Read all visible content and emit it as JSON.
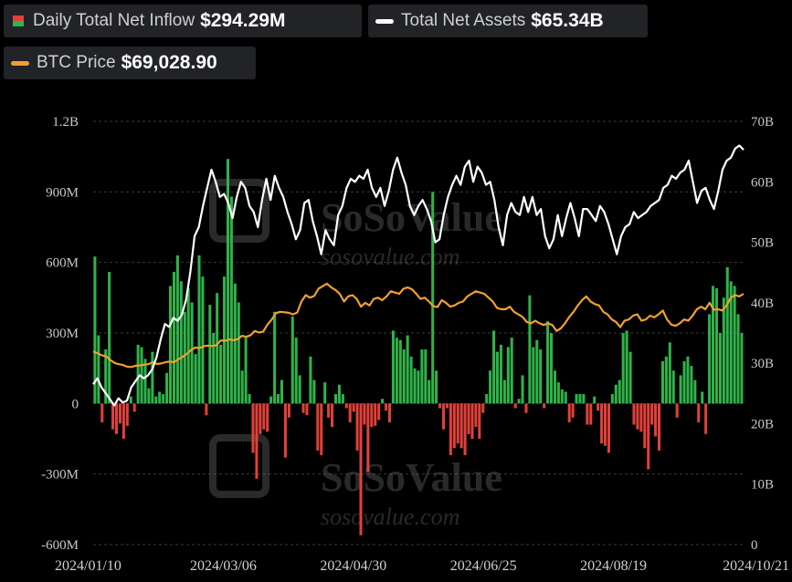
{
  "legend": {
    "inflow_label": "Daily Total Net Inflow",
    "inflow_value": "$294.29M",
    "assets_label": "Total Net Assets",
    "assets_value": "$65.34B",
    "btc_label": "BTC Price",
    "btc_value": "$69,028.90"
  },
  "watermark": {
    "brand": "SoSoValue",
    "url": "sosovalue.com"
  },
  "colors": {
    "positive_bar": "#2fb34a",
    "negative_bar": "#e0413a",
    "assets_line": "#ffffff",
    "btc_line": "#f0a030",
    "grid": "#3a3a3a",
    "background": "#000000"
  },
  "chart_data": {
    "type": "bar",
    "title": "",
    "x_ticks": [
      "2024/01/10",
      "2024/03/06",
      "2024/04/30",
      "2024/06/25",
      "2024/08/19",
      "2024/10/21"
    ],
    "y_left": {
      "ticks": [
        "-600M",
        "-300M",
        "0",
        "300M",
        "600M",
        "900M",
        "1.2B"
      ],
      "range": [
        -600,
        1200
      ],
      "unit": "M"
    },
    "y_right": {
      "ticks": [
        "0",
        "10B",
        "20B",
        "30B",
        "40B",
        "50B",
        "60B",
        "70B"
      ],
      "range": [
        0,
        70
      ],
      "unit": "B"
    },
    "grid": true,
    "series": [
      {
        "name": "Daily Total Net Inflow",
        "kind": "bar",
        "axis": "left",
        "values": [
          625,
          290,
          -80,
          230,
          560,
          -110,
          -130,
          -85,
          -150,
          -95,
          30,
          -35,
          250,
          240,
          190,
          65,
          220,
          30,
          50,
          40,
          130,
          500,
          560,
          630,
          520,
          390,
          490,
          430,
          210,
          630,
          540,
          -50,
          420,
          300,
          470,
          250,
          540,
          1040,
          880,
          510,
          430,
          140,
          280,
          40,
          -210,
          -320,
          -130,
          -110,
          -120,
          30,
          390,
          40,
          100,
          -230,
          -60,
          370,
          280,
          120,
          -40,
          -50,
          200,
          100,
          -200,
          -220,
          90,
          -60,
          -100,
          40,
          80,
          40,
          -20,
          -80,
          -35,
          -200,
          -560,
          -90,
          -290,
          -100,
          -95,
          -70,
          20,
          -30,
          -80,
          310,
          280,
          270,
          230,
          290,
          200,
          150,
          140,
          230,
          230,
          100,
          900,
          140,
          -20,
          -110,
          -20,
          -220,
          -190,
          -170,
          -190,
          -220,
          -130,
          -150,
          -100,
          -150,
          -40,
          40,
          140,
          310,
          220,
          250,
          100,
          240,
          280,
          -20,
          20,
          120,
          -40,
          460,
          240,
          270,
          230,
          -20,
          350,
          300,
          140,
          90,
          60,
          50,
          -80,
          -60,
          40,
          40,
          40,
          -90,
          -90,
          30,
          -30,
          -170,
          -180,
          -210,
          40,
          80,
          100,
          300,
          310,
          220,
          -90,
          -110,
          -120,
          -190,
          -280,
          -90,
          -140,
          -200,
          180,
          200,
          260,
          140,
          -60,
          120,
          180,
          200,
          160,
          100,
          -80,
          50,
          -130,
          380,
          500,
          490,
          300,
          450,
          580,
          520,
          500,
          380,
          300
        ]
      },
      {
        "name": "Total Net Assets",
        "kind": "line",
        "axis": "right",
        "values": [
          26.5,
          27.5,
          26.0,
          25.0,
          24.0,
          23.0,
          24.2,
          23.5,
          23.8,
          26.0,
          27.0,
          28.0,
          27.5,
          28.0,
          29.0,
          31.0,
          34.0,
          36.5,
          36.0,
          37.5,
          37.0,
          38.0,
          40.5,
          45.0,
          51.0,
          52.5,
          56.0,
          59.0,
          62.0,
          60.0,
          57.5,
          58.0,
          56.5,
          54.0,
          57.5,
          60.0,
          59.0,
          56.0,
          55.0,
          52.5,
          57.0,
          60.5,
          57.0,
          61.0,
          59.0,
          57.5,
          55.0,
          53.0,
          50.5,
          52.0,
          56.5,
          57.0,
          53.5,
          51.0,
          48.0,
          52.0,
          50.5,
          49.5,
          54.5,
          56.0,
          59.0,
          60.5,
          60.0,
          61.0,
          60.5,
          62.0,
          59.0,
          57.5,
          59.0,
          56.0,
          58.5,
          62.0,
          64.0,
          61.5,
          59.5,
          56.0,
          54.5,
          56.0,
          57.0,
          55.5,
          53.5,
          50.0,
          50.5,
          54.5,
          57.5,
          59.5,
          61.0,
          59.5,
          62.5,
          63.5,
          60.0,
          62.5,
          61.5,
          59.5,
          60.0,
          57.0,
          52.5,
          49.5,
          54.5,
          56.5,
          55.0,
          54.5,
          57.5,
          55.0,
          57.5,
          54.5,
          55.5,
          51.0,
          49.0,
          50.5,
          54.5,
          51.0,
          54.0,
          56.5,
          54.0,
          51.0,
          55.5,
          55.5,
          54.5,
          53.5,
          56.0,
          55.0,
          53.0,
          50.5,
          48.0,
          51.0,
          52.5,
          53.0,
          55.0,
          54.0,
          54.5,
          55.0,
          56.0,
          56.5,
          57.0,
          59.0,
          59.5,
          61.0,
          60.5,
          61.5,
          62.0,
          63.5,
          60.0,
          56.5,
          58.5,
          59.0,
          57.0,
          55.5,
          58.5,
          62.0,
          63.5,
          64.0,
          65.5,
          66.0,
          65.3
        ]
      },
      {
        "name": "BTC Price",
        "kind": "line",
        "axis": "right",
        "values": [
          46500,
          45800,
          45000,
          44600,
          43200,
          42000,
          41500,
          41200,
          40500,
          40400,
          40900,
          41000,
          41300,
          41500,
          42300,
          41600,
          41800,
          42300,
          42500,
          42300,
          43400,
          44300,
          45500,
          47000,
          48000,
          47800,
          48500,
          48800,
          48600,
          48900,
          50800,
          50600,
          51200,
          50900,
          51300,
          52600,
          52200,
          52800,
          54500,
          53900,
          54200,
          57000,
          59000,
          61500,
          62000,
          61800,
          61600,
          61000,
          61700,
          66000,
          68500,
          67500,
          68200,
          71000,
          72000,
          73000,
          71500,
          70500,
          69000,
          66000,
          68000,
          68500,
          67000,
          64000,
          65500,
          64500,
          67000,
          67500,
          66500,
          68000,
          70000,
          69500,
          69000,
          71000,
          71500,
          70800,
          69000,
          67000,
          67500,
          66000,
          64200,
          63800,
          66500,
          65500,
          64000,
          64500,
          65500,
          66000,
          68000,
          69000,
          70000,
          69500,
          69000,
          67500,
          66000,
          63500,
          63000,
          63000,
          64000,
          62000,
          61000,
          60000,
          58000,
          57500,
          58500,
          57500,
          56800,
          57500,
          56800,
          54500,
          55500,
          57500,
          60000,
          62000,
          64500,
          66500,
          68000,
          66000,
          65000,
          64500,
          62000,
          61000,
          59000,
          58000,
          56000,
          58500,
          59000,
          60500,
          61000,
          58500,
          59000,
          60500,
          59800,
          61000,
          62500,
          59000,
          57000,
          56500,
          57500,
          59000,
          58500,
          60500,
          63000,
          64000,
          63000,
          65500,
          62800,
          63000,
          62500,
          64500,
          67500,
          68500,
          68000,
          69000
        ]
      }
    ]
  }
}
